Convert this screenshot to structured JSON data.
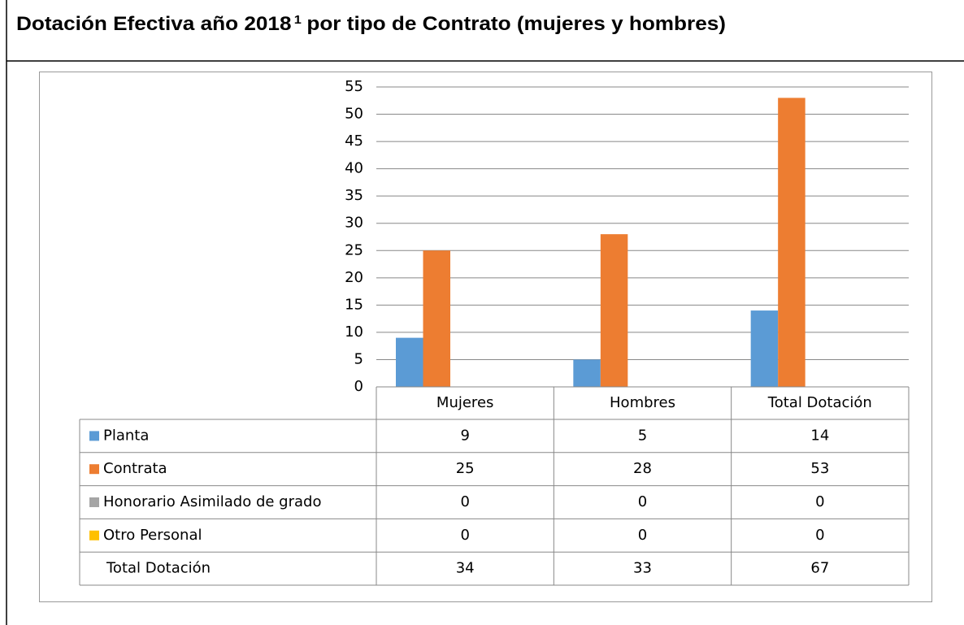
{
  "chart_data": {
    "type": "bar",
    "title": "Dotación Efectiva año 2018",
    "title_superscript": "1",
    "title_rest": "por tipo de Contrato (mujeres y hombres)",
    "categories": [
      "Mujeres",
      "Hombres",
      "Total Dotación"
    ],
    "series": [
      {
        "name": "Planta",
        "color": "#5b9bd5",
        "values": [
          9,
          5,
          14
        ]
      },
      {
        "name": "Contrata",
        "color": "#ed7d31",
        "values": [
          25,
          28,
          53
        ]
      },
      {
        "name": "Honorario Asimilado de grado",
        "color": "#a5a5a5",
        "values": [
          0,
          0,
          0
        ]
      },
      {
        "name": "Otro Personal",
        "color": "#ffc000",
        "values": [
          0,
          0,
          0
        ]
      }
    ],
    "totals": {
      "name": "Total Dotación",
      "values": [
        34,
        33,
        67
      ]
    },
    "ylim": [
      0,
      55
    ],
    "yticks": [
      0,
      5,
      10,
      15,
      20,
      25,
      30,
      35,
      40,
      45,
      50,
      55
    ],
    "grid": true
  }
}
